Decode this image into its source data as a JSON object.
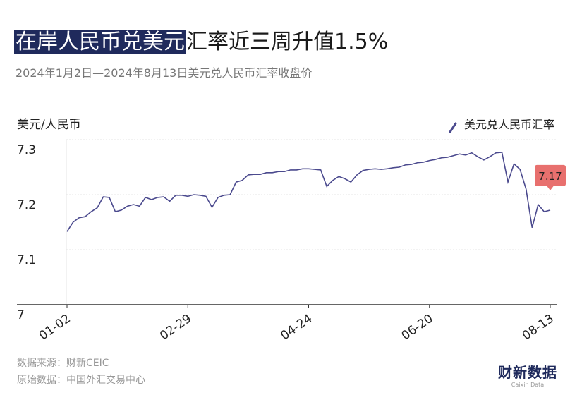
{
  "chart_data": {
    "type": "line",
    "title": [
      "在岸人民币兑美元",
      "汇率近三周升值1.5%"
    ],
    "subtitle": "2024年1月2日—2024年8月13日美元兑人民币汇率收盘价",
    "y_label": "美元/人民币",
    "categories": [
      "01-02",
      null,
      null,
      null,
      null,
      null,
      null,
      null,
      null,
      null,
      null,
      null,
      null,
      null,
      null,
      null,
      null,
      null,
      null,
      null,
      "02-29",
      null,
      null,
      null,
      null,
      null,
      null,
      null,
      null,
      null,
      null,
      null,
      null,
      null,
      null,
      null,
      null,
      null,
      null,
      null,
      "04-24",
      null,
      null,
      null,
      null,
      null,
      null,
      null,
      null,
      null,
      null,
      null,
      null,
      null,
      null,
      null,
      null,
      null,
      null,
      null,
      "06-20",
      null,
      null,
      null,
      null,
      null,
      null,
      null,
      null,
      null,
      null,
      null,
      null,
      null,
      null,
      null,
      null,
      null,
      null,
      null,
      "08-13"
    ],
    "series": [
      {
        "name": "美元兑人民币汇率",
        "color": "#4b4a8e",
        "values": [
          7.133,
          7.15,
          7.158,
          7.16,
          7.169,
          7.176,
          7.196,
          7.195,
          7.169,
          7.172,
          7.179,
          7.182,
          7.179,
          7.195,
          7.191,
          7.195,
          7.196,
          7.188,
          7.199,
          7.199,
          7.197,
          7.2,
          7.199,
          7.197,
          7.177,
          7.195,
          7.199,
          7.2,
          7.223,
          7.226,
          7.236,
          7.237,
          7.237,
          7.24,
          7.24,
          7.242,
          7.242,
          7.245,
          7.245,
          7.247,
          7.247,
          7.246,
          7.245,
          7.215,
          7.226,
          7.233,
          7.229,
          7.223,
          7.236,
          7.244,
          7.246,
          7.247,
          7.246,
          7.247,
          7.249,
          7.25,
          7.254,
          7.255,
          7.258,
          7.259,
          7.262,
          7.264,
          7.267,
          7.268,
          7.271,
          7.274,
          7.272,
          7.276,
          7.269,
          7.263,
          7.269,
          7.276,
          7.277,
          7.223,
          7.256,
          7.246,
          7.21,
          7.14,
          7.182,
          7.169,
          7.172
        ],
        "value_labels": [
          null,
          null,
          null,
          null,
          null,
          null,
          null,
          null,
          null,
          null,
          null,
          null,
          null,
          null,
          null,
          null,
          null,
          null,
          null,
          null,
          null,
          null,
          null,
          null,
          null,
          null,
          null,
          null,
          null,
          null,
          null,
          null,
          null,
          null,
          null,
          null,
          null,
          null,
          null,
          null,
          null,
          null,
          null,
          null,
          null,
          null,
          null,
          null,
          null,
          null,
          null,
          null,
          null,
          null,
          null,
          null,
          null,
          null,
          null,
          null,
          null,
          null,
          null,
          null,
          null,
          null,
          null,
          null,
          null,
          null,
          null,
          null,
          null,
          null,
          null,
          null,
          null,
          null,
          null,
          null,
          "7.17"
        ]
      }
    ],
    "label_color": "#e8706e",
    "ylim": [
      7,
      7.3
    ],
    "yticks": [
      7,
      7.1,
      7.2,
      7.3
    ],
    "grid": true,
    "legend": "top-right",
    "source": "数据来源：财新CEIC",
    "raw_source": "原始数据：中国外汇交易中心",
    "logo": "财新数据",
    "logo_sub": "Caixin Data"
  }
}
